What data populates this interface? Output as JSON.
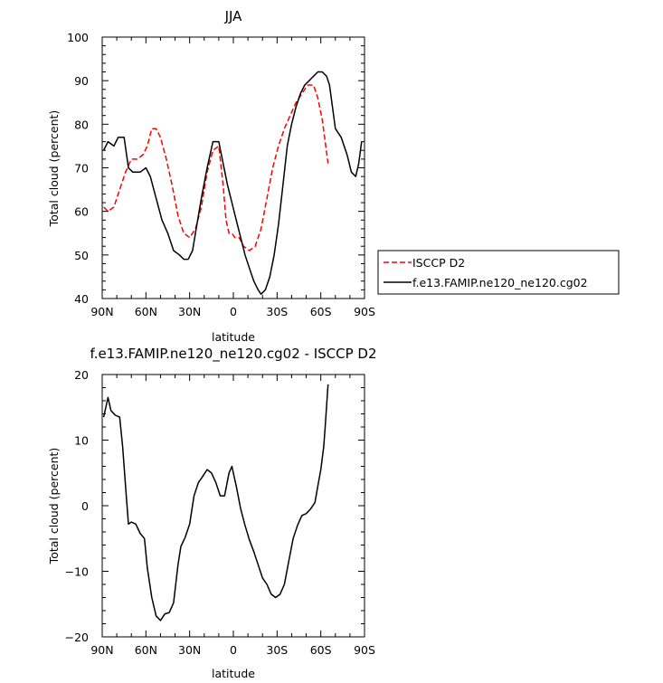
{
  "chart_data": [
    {
      "type": "line",
      "title": "JJA",
      "xlabel": "latitude",
      "ylabel": "Total cloud (percent)",
      "xlim": [
        90,
        -90
      ],
      "ylim": [
        40,
        100
      ],
      "xticks": [
        90,
        60,
        30,
        0,
        -30,
        -60,
        -90
      ],
      "xtick_labels": [
        "90N",
        "60N",
        "30N",
        "0",
        "30S",
        "60S",
        "90S"
      ],
      "yticks": [
        40,
        50,
        60,
        70,
        80,
        90,
        100
      ],
      "ytick_labels": [
        "40",
        "50",
        "60",
        "70",
        "80",
        "90",
        "100"
      ],
      "grid": false,
      "legend_position": "right",
      "series": [
        {
          "name": "ISCCP D2",
          "color": "#ff0000",
          "dash": "dashed",
          "x": [
            89,
            86,
            82,
            78,
            74,
            70,
            66,
            62,
            59,
            56,
            53,
            50,
            46,
            42,
            38,
            34,
            30,
            26,
            22,
            18,
            14,
            10,
            7,
            5,
            3,
            1,
            -1,
            -4,
            -7,
            -11,
            -15,
            -19,
            -23,
            -27,
            -31,
            -35,
            -39,
            -43,
            -47,
            -51,
            -55,
            -58,
            -61,
            -63,
            -65
          ],
          "y": [
            61,
            60,
            61,
            65,
            69,
            72,
            72,
            73,
            75,
            79,
            79,
            77,
            72,
            66,
            59,
            55,
            54,
            56,
            61,
            69,
            74,
            75,
            66,
            58,
            55,
            55,
            54,
            54,
            52,
            51,
            52,
            56,
            63,
            70,
            75,
            79,
            82,
            85,
            87,
            89,
            89,
            86,
            81,
            76,
            71
          ]
        },
        {
          "name": "f.e13.FAMIP.ne120_ne120.cg02",
          "color": "#000000",
          "dash": "solid",
          "x": [
            89,
            86,
            82,
            79,
            75,
            72,
            69,
            64,
            60,
            57,
            53,
            49,
            45,
            41,
            37,
            34,
            31,
            28,
            25,
            22,
            18,
            14,
            10,
            7,
            4,
            1,
            -2,
            -5,
            -8,
            -11,
            -14,
            -17,
            -19,
            -22,
            -25,
            -28,
            -31,
            -34,
            -37,
            -40,
            -43,
            -46,
            -49,
            -52,
            -55,
            -58,
            -61,
            -64,
            -66,
            -70,
            -74,
            -78,
            -81,
            -84,
            -86,
            -88
          ],
          "y": [
            74,
            76,
            75,
            77,
            77,
            70,
            69,
            69,
            70,
            68,
            63,
            58,
            55,
            51,
            50,
            49,
            49,
            51,
            57,
            63,
            70,
            76,
            76,
            71,
            66,
            62,
            58,
            54,
            50,
            47,
            44,
            42,
            41,
            42,
            45,
            50,
            57,
            66,
            75,
            80,
            84,
            87,
            89,
            90,
            91,
            92,
            92,
            91,
            89,
            79,
            77,
            73,
            69,
            68,
            71,
            76
          ]
        }
      ]
    },
    {
      "type": "line",
      "title": "f.e13.FAMIP.ne120_ne120.cg02 - ISCCP D2",
      "xlabel": "latitude",
      "ylabel": "Total cloud (percent)",
      "xlim": [
        90,
        -90
      ],
      "ylim": [
        -20,
        20
      ],
      "xticks": [
        90,
        60,
        30,
        0,
        -30,
        -60,
        -90
      ],
      "xtick_labels": [
        "90N",
        "60N",
        "30N",
        "0",
        "30S",
        "60S",
        "90S"
      ],
      "yticks": [
        -20,
        -10,
        0,
        10,
        20
      ],
      "ytick_labels": [
        "−20",
        "−10",
        "0",
        "10",
        "20"
      ],
      "grid": false,
      "series": [
        {
          "color": "#000000",
          "dash": "solid",
          "x": [
            89,
            86,
            84,
            81,
            78,
            76,
            74,
            72,
            70,
            67,
            64,
            61,
            59,
            56,
            53,
            50,
            47,
            44,
            41,
            38,
            36,
            33,
            30,
            27,
            24,
            21,
            18,
            15,
            12,
            9,
            6,
            3,
            1,
            -2,
            -5,
            -8,
            -11,
            -14,
            -17,
            -20,
            -23,
            -26,
            -29,
            -32,
            -35,
            -38,
            -41,
            -44,
            -47,
            -50,
            -53,
            -56,
            -58,
            -60,
            -62,
            -63,
            -65
          ],
          "y": [
            13.5,
            16.5,
            14.5,
            13.8,
            13.5,
            9.0,
            3.0,
            -2.8,
            -2.5,
            -2.8,
            -4.2,
            -5.0,
            -9.5,
            -14.0,
            -16.8,
            -17.5,
            -16.5,
            -16.3,
            -14.8,
            -9.0,
            -6.2,
            -4.8,
            -2.8,
            1.5,
            3.5,
            4.5,
            5.5,
            5.0,
            3.5,
            1.5,
            1.5,
            5.0,
            6.0,
            3.0,
            -0.5,
            -3.0,
            -5.2,
            -7.0,
            -9.0,
            -11.0,
            -12.0,
            -13.5,
            -14.0,
            -13.5,
            -12.0,
            -8.5,
            -5.0,
            -3.0,
            -1.5,
            -1.2,
            -0.5,
            0.5,
            3.0,
            5.5,
            9.0,
            12.0,
            18.5
          ]
        }
      ]
    }
  ]
}
